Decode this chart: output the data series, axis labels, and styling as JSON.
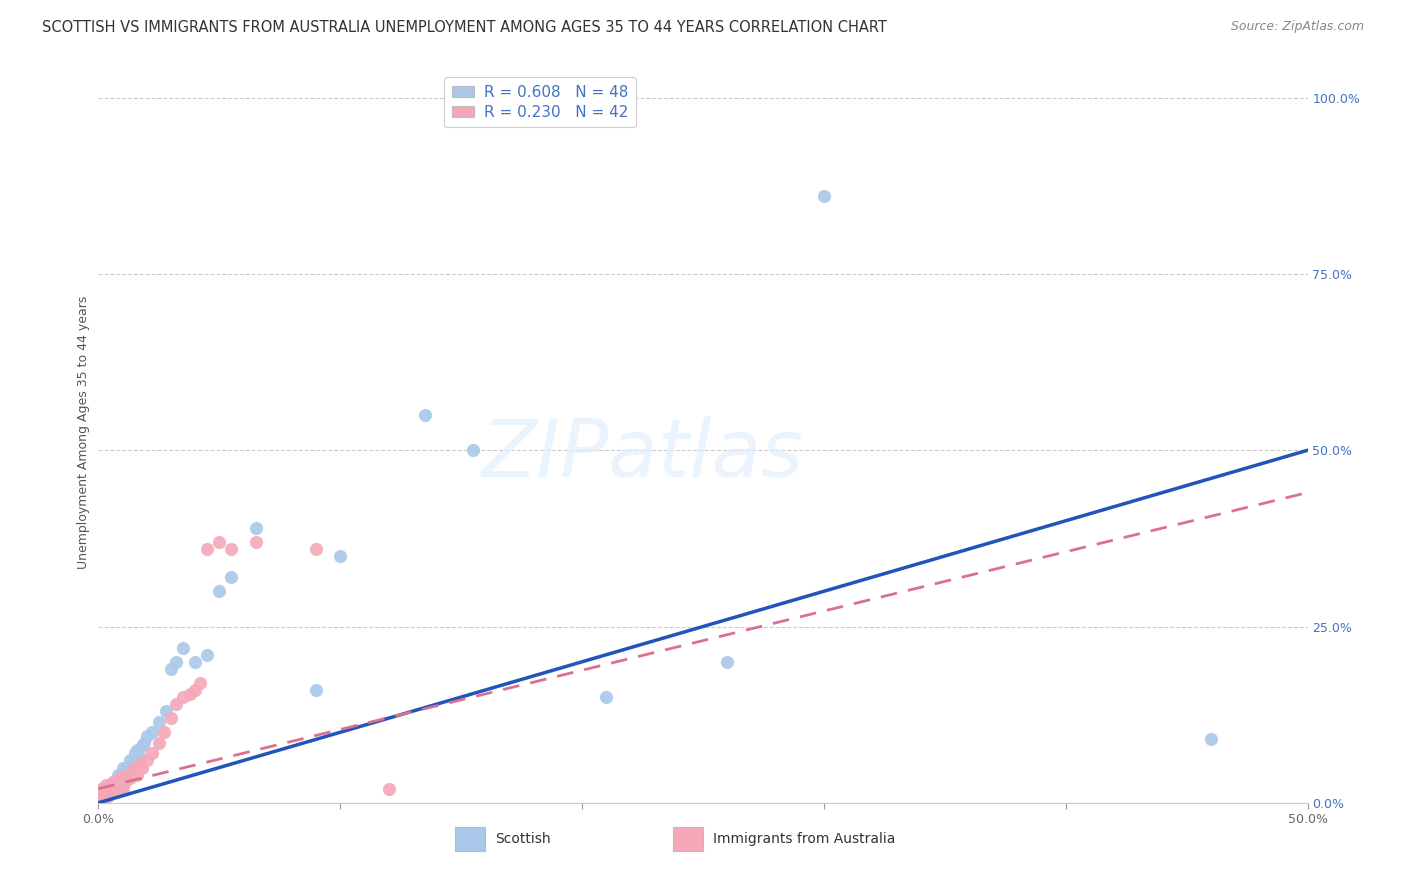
{
  "title": "SCOTTISH VS IMMIGRANTS FROM AUSTRALIA UNEMPLOYMENT AMONG AGES 35 TO 44 YEARS CORRELATION CHART",
  "source": "Source: ZipAtlas.com",
  "ylabel": "Unemployment Among Ages 35 to 44 years",
  "xlim": [
    0.0,
    0.5
  ],
  "ylim": [
    0.0,
    1.05
  ],
  "xtick_positions": [
    0.0,
    0.1,
    0.2,
    0.3,
    0.4,
    0.5
  ],
  "xtick_labels": [
    "0.0%",
    "",
    "",
    "",
    "",
    "50.0%"
  ],
  "yticks_right": [
    0.0,
    0.25,
    0.5,
    0.75,
    1.0
  ],
  "ytick_labels_right": [
    "0.0%",
    "25.0%",
    "50.0%",
    "75.0%",
    "100.0%"
  ],
  "legend_label1": "R = 0.608   N = 48",
  "legend_label2": "R = 0.230   N = 42",
  "color_scottish": "#aac8ea",
  "color_australia": "#f4a8b8",
  "line_color_scottish": "#2255bb",
  "line_color_australia": "#dd7090",
  "background_color": "#ffffff",
  "scottish_x": [
    0.001,
    0.002,
    0.002,
    0.003,
    0.003,
    0.004,
    0.004,
    0.005,
    0.005,
    0.006,
    0.006,
    0.007,
    0.007,
    0.008,
    0.008,
    0.009,
    0.009,
    0.01,
    0.01,
    0.011,
    0.012,
    0.013,
    0.014,
    0.015,
    0.016,
    0.017,
    0.018,
    0.019,
    0.02,
    0.022,
    0.025,
    0.028,
    0.03,
    0.032,
    0.035,
    0.04,
    0.045,
    0.05,
    0.055,
    0.065,
    0.09,
    0.1,
    0.135,
    0.155,
    0.21,
    0.26,
    0.3,
    0.46
  ],
  "scottish_y": [
    0.01,
    0.005,
    0.015,
    0.01,
    0.02,
    0.01,
    0.02,
    0.015,
    0.025,
    0.02,
    0.03,
    0.015,
    0.03,
    0.025,
    0.04,
    0.02,
    0.035,
    0.03,
    0.05,
    0.04,
    0.05,
    0.06,
    0.055,
    0.07,
    0.075,
    0.065,
    0.08,
    0.085,
    0.095,
    0.1,
    0.115,
    0.13,
    0.19,
    0.2,
    0.22,
    0.2,
    0.21,
    0.3,
    0.32,
    0.39,
    0.16,
    0.35,
    0.55,
    0.5,
    0.15,
    0.2,
    0.86,
    0.09
  ],
  "australia_x": [
    0.001,
    0.001,
    0.002,
    0.002,
    0.003,
    0.003,
    0.003,
    0.004,
    0.004,
    0.005,
    0.005,
    0.006,
    0.006,
    0.007,
    0.007,
    0.008,
    0.009,
    0.01,
    0.011,
    0.012,
    0.013,
    0.014,
    0.015,
    0.016,
    0.017,
    0.018,
    0.02,
    0.022,
    0.025,
    0.027,
    0.03,
    0.032,
    0.035,
    0.038,
    0.04,
    0.042,
    0.045,
    0.05,
    0.055,
    0.065,
    0.09,
    0.12
  ],
  "australia_y": [
    0.01,
    0.02,
    0.01,
    0.02,
    0.01,
    0.015,
    0.025,
    0.01,
    0.02,
    0.015,
    0.025,
    0.02,
    0.03,
    0.015,
    0.03,
    0.025,
    0.035,
    0.02,
    0.03,
    0.04,
    0.035,
    0.045,
    0.05,
    0.04,
    0.055,
    0.05,
    0.06,
    0.07,
    0.085,
    0.1,
    0.12,
    0.14,
    0.15,
    0.155,
    0.16,
    0.17,
    0.36,
    0.37,
    0.36,
    0.37,
    0.36,
    0.02
  ],
  "scottish_line_x": [
    0.0,
    0.5
  ],
  "scottish_line_y": [
    0.0,
    0.5
  ],
  "australia_line_x": [
    0.0,
    0.5
  ],
  "australia_line_y": [
    0.02,
    0.44
  ],
  "title_fontsize": 10.5,
  "source_fontsize": 9,
  "axis_tick_fontsize": 9,
  "legend_fontsize": 11,
  "ylabel_fontsize": 9,
  "watermark_color": "#ddeeff",
  "watermark_alpha": 0.6
}
